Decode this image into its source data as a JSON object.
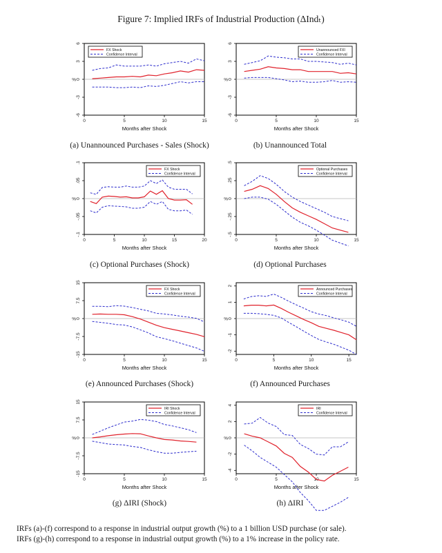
{
  "figure": {
    "title": "Figure 7: Implied IRFs of Industrial Production (ΔIndₜ)",
    "footnote_lines": [
      "IRFs (a)-(f) correspond to a response in industrial output growth (%) to a 1 billion USD purchase (or sale).",
      "IRFs (g)-(h) correspond to a response in industrial output growth (%) to a 1% increase in the policy rate."
    ]
  },
  "colors": {
    "irf_line": "#e0202a",
    "ci_line": "#2a2acc",
    "zero_line": "#b0b0b0",
    "axis": "#000000"
  },
  "chart_data": [
    {
      "id": "a",
      "type": "line",
      "caption": "(a) Unannounced Purchases - Sales (Shock)",
      "xlabel": "Months after Shock",
      "ylabel": "%",
      "xlim": [
        0,
        15
      ],
      "xticks": [
        0,
        5,
        10,
        15
      ],
      "ylim": [
        -6,
        6
      ],
      "yticks": [
        6,
        3,
        0,
        -3,
        -6
      ],
      "ytick_labels": [
        "6",
        "3",
        "0",
        "-3",
        "-6"
      ],
      "legend": [
        "FX Shock",
        "Confidence Interval"
      ],
      "legend_position": "top-left",
      "x": [
        1,
        2,
        3,
        4,
        5,
        6,
        7,
        8,
        9,
        10,
        11,
        12,
        13,
        14,
        15
      ],
      "series": [
        {
          "name": "FX Shock",
          "values": [
            0.1,
            0.2,
            0.3,
            0.4,
            0.4,
            0.5,
            0.4,
            0.7,
            0.6,
            0.9,
            1.1,
            1.4,
            1.2,
            1.6,
            1.5
          ]
        },
        {
          "name": "Confidence Interval Upper",
          "values": [
            1.5,
            1.8,
            1.9,
            2.4,
            2.2,
            2.2,
            2.2,
            2.4,
            2.2,
            2.6,
            2.8,
            3.0,
            2.7,
            3.4,
            3.1
          ]
        },
        {
          "name": "Confidence Interval Lower",
          "values": [
            -1.3,
            -1.3,
            -1.3,
            -1.4,
            -1.4,
            -1.3,
            -1.4,
            -1.1,
            -1.2,
            -1.0,
            -0.7,
            -0.4,
            -0.6,
            -0.4,
            -0.4
          ]
        }
      ]
    },
    {
      "id": "b",
      "type": "line",
      "caption": "(b) Unannounced Total",
      "xlabel": "Months after Shock",
      "ylabel": "%",
      "xlim": [
        0,
        15
      ],
      "xticks": [
        0,
        5,
        10,
        15
      ],
      "ylim": [
        -6,
        6
      ],
      "yticks": [
        6,
        3,
        0,
        -3,
        -6
      ],
      "ytick_labels": [
        "6",
        "3",
        "0",
        "-3",
        "-6"
      ],
      "legend": [
        "Unannounced FXI",
        "Confidence Interval"
      ],
      "legend_position": "top-right",
      "x": [
        1,
        2,
        3,
        4,
        5,
        6,
        7,
        8,
        9,
        10,
        11,
        12,
        13,
        14,
        15
      ],
      "series": [
        {
          "name": "Unannounced FXI",
          "values": [
            1.3,
            1.5,
            1.7,
            2.1,
            1.9,
            1.8,
            1.6,
            1.6,
            1.3,
            1.3,
            1.3,
            1.3,
            1.0,
            1.1,
            0.9
          ]
        },
        {
          "name": "Confidence Interval Upper",
          "values": [
            2.5,
            2.8,
            3.1,
            3.9,
            3.7,
            3.6,
            3.4,
            3.4,
            3.0,
            3.0,
            2.9,
            2.8,
            2.5,
            2.7,
            2.4
          ]
        },
        {
          "name": "Confidence Interval Lower",
          "values": [
            0.2,
            0.3,
            0.3,
            0.3,
            0.1,
            -0.1,
            -0.4,
            -0.3,
            -0.5,
            -0.5,
            -0.4,
            -0.2,
            -0.5,
            -0.4,
            -0.5
          ]
        }
      ]
    },
    {
      "id": "c",
      "type": "line",
      "caption": "(c) Optional Purchases (Shock)",
      "xlabel": "Months after Shock",
      "ylabel": "%",
      "xlim": [
        0,
        20
      ],
      "xticks": [
        0,
        5,
        10,
        15,
        20
      ],
      "ylim": [
        -0.1,
        0.1
      ],
      "yticks": [
        0.1,
        0.05,
        0,
        -0.05,
        -0.1
      ],
      "ytick_labels": [
        ".1",
        ".05",
        "0",
        "-.05",
        "-.1"
      ],
      "legend": [
        "FX Shock",
        "Confidence Interval"
      ],
      "legend_position": "top-right",
      "x": [
        1,
        2,
        3,
        4,
        5,
        6,
        7,
        8,
        9,
        10,
        11,
        12,
        13,
        14,
        15,
        16,
        17,
        18
      ],
      "series": [
        {
          "name": "FX Shock",
          "values": [
            -0.008,
            -0.014,
            0.004,
            0.007,
            0.006,
            0.004,
            0.005,
            0.002,
            0.002,
            0.005,
            0.021,
            0.012,
            0.022,
            0.0,
            -0.004,
            -0.004,
            -0.003,
            -0.016
          ]
        },
        {
          "name": "Confidence Interval Upper",
          "values": [
            0.016,
            0.012,
            0.031,
            0.033,
            0.032,
            0.032,
            0.035,
            0.032,
            0.032,
            0.035,
            0.05,
            0.042,
            0.052,
            0.032,
            0.026,
            0.026,
            0.026,
            0.013
          ]
        },
        {
          "name": "Confidence Interval Lower",
          "values": [
            -0.034,
            -0.04,
            -0.024,
            -0.02,
            -0.021,
            -0.022,
            -0.023,
            -0.027,
            -0.027,
            -0.024,
            -0.008,
            -0.016,
            -0.008,
            -0.03,
            -0.034,
            -0.034,
            -0.032,
            -0.044
          ]
        }
      ]
    },
    {
      "id": "d",
      "type": "line",
      "caption": "(d) Optional Purchases",
      "xlabel": "Months after Shock",
      "ylabel": "%",
      "xlim": [
        0,
        15
      ],
      "xticks": [
        0,
        5,
        10,
        15
      ],
      "ylim": [
        -0.5,
        0.5
      ],
      "yticks": [
        0.5,
        0.25,
        0,
        -0.25,
        -0.5
      ],
      "ytick_labels": [
        ".5",
        ".25",
        "0",
        "-.25",
        "-.5"
      ],
      "legend": [
        "Optional Purchases",
        "Confidence Interval"
      ],
      "legend_position": "top-right",
      "x": [
        1,
        2,
        3,
        4,
        5,
        6,
        7,
        8,
        9,
        10,
        11,
        12,
        13,
        14
      ],
      "series": [
        {
          "name": "Optional Purchases",
          "values": [
            0.1,
            0.13,
            0.18,
            0.14,
            0.06,
            -0.04,
            -0.13,
            -0.19,
            -0.24,
            -0.29,
            -0.35,
            -0.41,
            -0.44,
            -0.47
          ]
        },
        {
          "name": "Confidence Interval Upper",
          "values": [
            0.18,
            0.24,
            0.32,
            0.28,
            0.2,
            0.1,
            0.02,
            -0.04,
            -0.09,
            -0.14,
            -0.19,
            -0.25,
            -0.28,
            -0.31
          ]
        },
        {
          "name": "Confidence Interval Lower",
          "values": [
            0.0,
            0.02,
            0.02,
            -0.01,
            -0.08,
            -0.17,
            -0.26,
            -0.33,
            -0.38,
            -0.44,
            -0.51,
            -0.58,
            -0.62,
            -0.66
          ]
        }
      ]
    },
    {
      "id": "e",
      "type": "line",
      "caption": "(e) Announced Purchases (Shock)",
      "xlabel": "Months after Shock",
      "ylabel": "%",
      "xlim": [
        0,
        15
      ],
      "xticks": [
        0,
        5,
        10,
        15
      ],
      "ylim": [
        -15,
        15
      ],
      "yticks": [
        15,
        7.5,
        0,
        -7.5,
        -15
      ],
      "ytick_labels": [
        "15",
        "7.5",
        "0",
        "-7.5",
        "-15"
      ],
      "legend": [
        "FX Shock",
        "Confidence Interval"
      ],
      "legend_position": "top-right",
      "x": [
        1,
        2,
        3,
        4,
        5,
        6,
        7,
        8,
        9,
        10,
        11,
        12,
        13,
        14,
        15
      ],
      "series": [
        {
          "name": "FX Shock",
          "values": [
            1.8,
            1.9,
            1.8,
            1.8,
            1.6,
            0.8,
            -0.2,
            -1.5,
            -2.8,
            -3.8,
            -4.5,
            -5.2,
            -5.9,
            -6.6,
            -7.6
          ]
        },
        {
          "name": "Confidence Interval Upper",
          "values": [
            5.1,
            5.1,
            5.0,
            5.4,
            5.2,
            4.6,
            3.9,
            3.2,
            2.2,
            1.9,
            1.5,
            1.0,
            0.6,
            0.1,
            -1.4
          ]
        },
        {
          "name": "Confidence Interval Lower",
          "values": [
            -1.2,
            -1.6,
            -2.0,
            -2.5,
            -2.7,
            -3.5,
            -4.7,
            -6.0,
            -7.6,
            -8.4,
            -9.3,
            -10.3,
            -11.3,
            -12.3,
            -13.7
          ]
        }
      ]
    },
    {
      "id": "f",
      "type": "line",
      "caption": "(f) Announced Purchases",
      "xlabel": "Months after Shock",
      "ylabel": "%",
      "xlim": [
        0,
        16
      ],
      "xticks": [
        0,
        5,
        10,
        15
      ],
      "ylim": [
        -2.2,
        2.2
      ],
      "yticks": [
        2,
        1,
        0,
        -1,
        -2
      ],
      "ytick_labels": [
        "2",
        "1",
        "0",
        "-1",
        "-2"
      ],
      "legend": [
        "Announced Purchases",
        "Confidence Interval"
      ],
      "legend_position": "top-right",
      "x": [
        1,
        2,
        3,
        4,
        5,
        6,
        7,
        8,
        9,
        10,
        11,
        12,
        13,
        14,
        15,
        16
      ],
      "series": [
        {
          "name": "Announced Purchases",
          "values": [
            0.78,
            0.82,
            0.82,
            0.78,
            0.83,
            0.62,
            0.38,
            0.16,
            -0.06,
            -0.26,
            -0.48,
            -0.6,
            -0.72,
            -0.86,
            -1.0,
            -1.3
          ]
        },
        {
          "name": "Confidence Interval Upper",
          "values": [
            1.2,
            1.35,
            1.4,
            1.36,
            1.5,
            1.3,
            1.06,
            0.84,
            0.64,
            0.42,
            0.28,
            0.18,
            0.04,
            -0.08,
            -0.22,
            -0.48
          ]
        },
        {
          "name": "Confidence Interval Lower",
          "values": [
            0.32,
            0.32,
            0.3,
            0.26,
            0.2,
            0.04,
            -0.24,
            -0.5,
            -0.78,
            -1.04,
            -1.28,
            -1.44,
            -1.58,
            -1.76,
            -1.94,
            -2.2
          ]
        }
      ]
    },
    {
      "id": "g",
      "type": "line",
      "caption": "(g) ΔIRI (Shock)",
      "xlabel": "Months after Shock",
      "ylabel": "%",
      "xlim": [
        0,
        15
      ],
      "xticks": [
        0,
        5,
        10,
        15
      ],
      "ylim": [
        -15,
        15
      ],
      "yticks": [
        15,
        7.5,
        0,
        -7.5,
        -15
      ],
      "ytick_labels": [
        "15",
        "7.5",
        "0",
        "-7.5",
        "-15"
      ],
      "legend": [
        "IRI Shock",
        "Confidence Interval"
      ],
      "legend_position": "top-right",
      "x": [
        1,
        2,
        3,
        4,
        5,
        6,
        7,
        8,
        9,
        10,
        11,
        12,
        13,
        14
      ],
      "series": [
        {
          "name": "IRI Shock",
          "values": [
            0.0,
            0.4,
            0.9,
            1.3,
            1.6,
            1.8,
            1.7,
            0.8,
            0.0,
            -0.7,
            -0.9,
            -1.3,
            -1.5,
            -1.8
          ]
        },
        {
          "name": "Confidence Interval Upper",
          "values": [
            1.4,
            2.8,
            4.2,
            5.4,
            6.6,
            7.0,
            7.7,
            7.4,
            6.8,
            5.6,
            5.0,
            4.2,
            3.4,
            2.2
          ]
        },
        {
          "name": "Confidence Interval Lower",
          "values": [
            -1.4,
            -2.0,
            -2.6,
            -2.8,
            -3.0,
            -3.6,
            -4.0,
            -5.0,
            -5.8,
            -6.4,
            -6.4,
            -6.1,
            -5.8,
            -5.6
          ]
        }
      ]
    },
    {
      "id": "h",
      "type": "line",
      "caption": "(h) ΔIRI",
      "xlabel": "Months after Shock",
      "ylabel": "%",
      "xlim": [
        0,
        15
      ],
      "xticks": [
        0,
        5,
        10,
        15
      ],
      "ylim": [
        -4.4,
        4.4
      ],
      "yticks": [
        4,
        2,
        0,
        -2,
        -4
      ],
      "ytick_labels": [
        "4",
        "2",
        "0",
        "-2",
        "-4"
      ],
      "legend": [
        "IRI",
        "Confidence Interval"
      ],
      "legend_position": "top-right",
      "x": [
        1,
        2,
        3,
        4,
        5,
        6,
        7,
        8,
        9,
        10,
        11,
        12,
        13,
        14
      ],
      "series": [
        {
          "name": "IRI",
          "values": [
            0.5,
            0.2,
            0.0,
            -0.5,
            -1.0,
            -1.9,
            -2.4,
            -3.5,
            -4.2,
            -5.1,
            -5.3,
            -4.6,
            -4.1,
            -3.6
          ]
        },
        {
          "name": "Confidence Interval Upper",
          "values": [
            1.7,
            1.8,
            2.5,
            1.8,
            1.4,
            0.4,
            0.3,
            -0.8,
            -1.3,
            -2.0,
            -2.1,
            -1.1,
            -1.1,
            -0.5
          ]
        },
        {
          "name": "Confidence Interval Lower",
          "values": [
            -0.9,
            -1.6,
            -2.4,
            -3.0,
            -3.6,
            -4.5,
            -5.4,
            -6.7,
            -7.7,
            -8.9,
            -8.9,
            -8.4,
            -7.9,
            -7.3
          ]
        }
      ]
    }
  ]
}
